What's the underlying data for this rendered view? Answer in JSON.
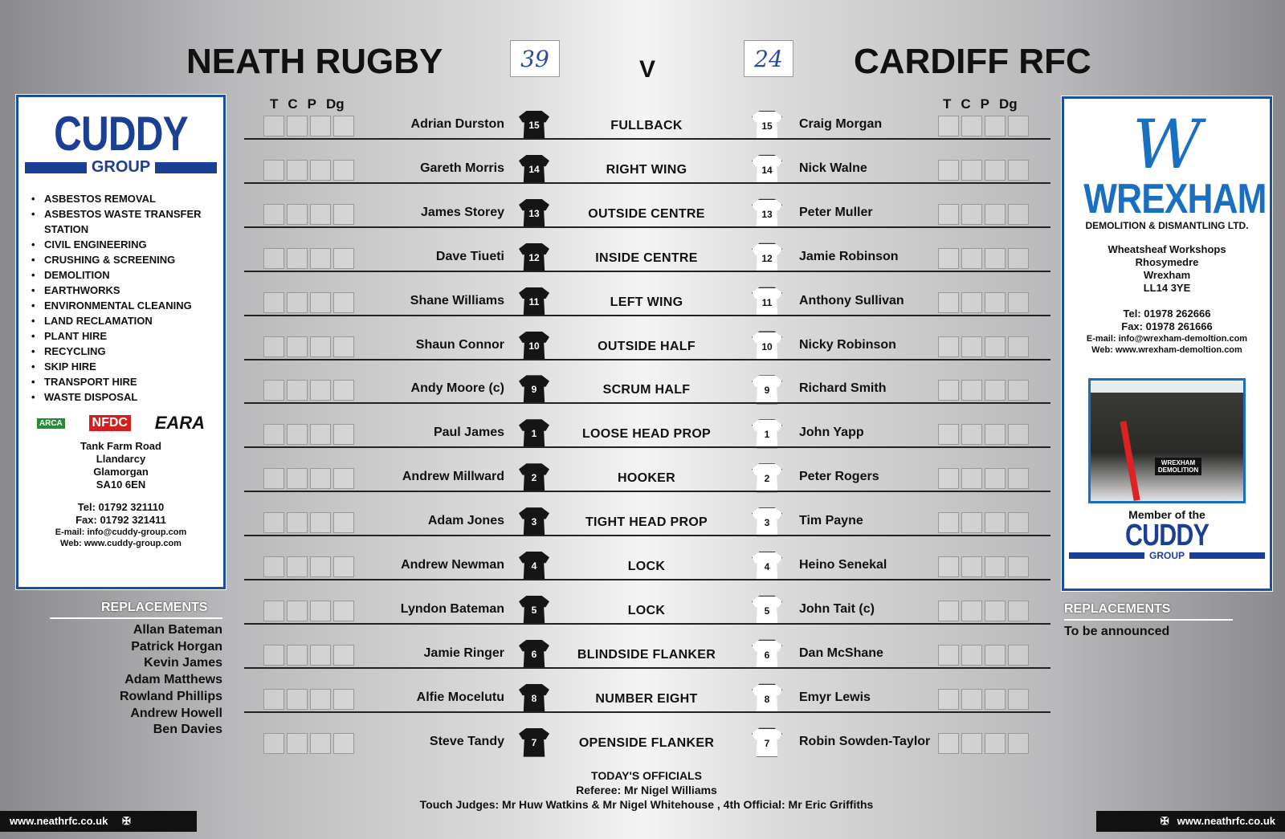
{
  "home": {
    "name": "NEATH RUGBY",
    "score": "39"
  },
  "away": {
    "name": "CARDIFF RFC",
    "score": "24"
  },
  "vs": "V",
  "score_headers": [
    "T",
    "C",
    "P",
    "Dg"
  ],
  "rows": [
    {
      "home": "Adrian Durston",
      "num": "15",
      "position": "FULLBACK",
      "away": "Craig Morgan",
      "anum": "15"
    },
    {
      "home": "Gareth Morris",
      "num": "14",
      "position": "RIGHT WING",
      "away": "Nick Walne",
      "anum": "14"
    },
    {
      "home": "James Storey",
      "num": "13",
      "position": "OUTSIDE CENTRE",
      "away": "Peter Muller",
      "anum": "13"
    },
    {
      "home": "Dave Tiueti",
      "num": "12",
      "position": "INSIDE CENTRE",
      "away": "Jamie Robinson",
      "anum": "12"
    },
    {
      "home": "Shane Williams",
      "num": "11",
      "position": "LEFT WING",
      "away": "Anthony Sullivan",
      "anum": "11"
    },
    {
      "home": "Shaun Connor",
      "num": "10",
      "position": "OUTSIDE HALF",
      "away": "Nicky Robinson",
      "anum": "10"
    },
    {
      "home": "Andy Moore (c)",
      "num": "9",
      "position": "SCRUM HALF",
      "away": "Richard Smith",
      "anum": "9"
    },
    {
      "home": "Paul James",
      "num": "1",
      "position": "LOOSE HEAD PROP",
      "away": "John Yapp",
      "anum": "1"
    },
    {
      "home": "Andrew Millward",
      "num": "2",
      "position": "HOOKER",
      "away": "Peter Rogers",
      "anum": "2"
    },
    {
      "home": "Adam Jones",
      "num": "3",
      "position": "TIGHT HEAD PROP",
      "away": "Tim Payne",
      "anum": "3"
    },
    {
      "home": "Andrew Newman",
      "num": "4",
      "position": "LOCK",
      "away": "Heino Senekal",
      "anum": "4"
    },
    {
      "home": "Lyndon Bateman",
      "num": "5",
      "position": "LOCK",
      "away": "John Tait (c)",
      "anum": "5"
    },
    {
      "home": "Jamie Ringer",
      "num": "6",
      "position": "BLINDSIDE FLANKER",
      "away": "Dan McShane",
      "anum": "6"
    },
    {
      "home": "Alfie Mocelutu",
      "num": "8",
      "position": "NUMBER EIGHT",
      "away": "Emyr Lewis",
      "anum": "8"
    },
    {
      "home": "Steve Tandy",
      "num": "7",
      "position": "OPENSIDE FLANKER",
      "away": "Robin Sowden-Taylor",
      "anum": "7"
    }
  ],
  "home_replacements": {
    "title": "REPLACEMENTS",
    "names": [
      "Allan Bateman",
      "Patrick Horgan",
      "Kevin James",
      "Adam Matthews",
      "Rowland Phillips",
      "Andrew Howell",
      "Ben Davies"
    ]
  },
  "away_replacements": {
    "title": "REPLACEMENTS",
    "note": "To be announced"
  },
  "officials": {
    "title": "TODAY'S OFFICIALS",
    "referee": "Referee: Mr Nigel Williams",
    "others": "Touch Judges: Mr Huw Watkins & Mr Nigel Whitehouse , 4th Official: Mr Eric Griffiths"
  },
  "ad_left": {
    "brand": "CUDDY",
    "sub": "GROUP",
    "services": [
      "ASBESTOS REMOVAL",
      "ASBESTOS WASTE TRANSFER STATION",
      "CIVIL ENGINEERING",
      "CRUSHING & SCREENING",
      "DEMOLITION",
      "EARTHWORKS",
      "ENVIRONMENTAL CLEANING",
      "LAND RECLAMATION",
      "PLANT HIRE",
      "RECYCLING",
      "SKIP HIRE",
      "TRANSPORT HIRE",
      "WASTE DISPOSAL"
    ],
    "logos": [
      "ARCA",
      "NFDC",
      "EARA"
    ],
    "address": [
      "Tank Farm Road",
      "Llandarcy",
      "Glamorgan",
      "SA10 6EN"
    ],
    "tel": "Tel: 01792 321110",
    "fax": "Fax: 01792 321411",
    "email": "E-mail: info@cuddy-group.com",
    "web": "Web: www.cuddy-group.com"
  },
  "ad_right": {
    "logo": "W",
    "brand": "WREXHAM",
    "tagline": "DEMOLITION & DISMANTLING LTD.",
    "address": [
      "Wheatsheaf Workshops",
      "Rhosymedre",
      "Wrexham",
      "LL14 3YE"
    ],
    "tel": "Tel: 01978 262666",
    "fax": "Fax: 01978 261666",
    "email": "E-mail: info@wrexham-demoltion.com",
    "web": "Web: www.wrexham-demoltion.com",
    "photo_sign": "WREXHAM DEMOLITION",
    "member": "Member of the",
    "member_brand": "CUDDY",
    "member_sub": "GROUP"
  },
  "footer": {
    "left": "www.neathrfc.co.uk",
    "right": "www.neathrfc.co.uk"
  },
  "colors": {
    "brand_blue": "#1a3f94",
    "wrexham_blue": "#1a6fc0",
    "nfdc_red": "#d02020"
  }
}
